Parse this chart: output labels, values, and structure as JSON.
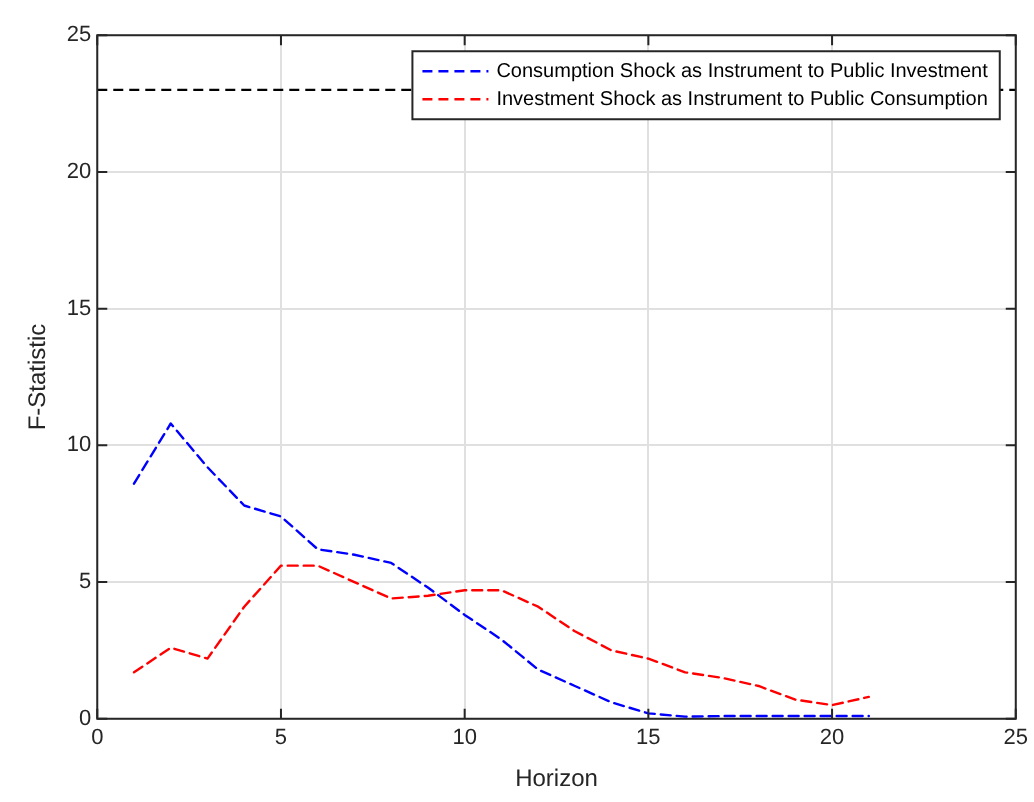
{
  "chart_data": {
    "type": "line",
    "xlabel": "Horizon",
    "ylabel": "F-Statistic",
    "x": [
      1,
      2,
      3,
      4,
      5,
      6,
      7,
      8,
      9,
      10,
      11,
      12,
      13,
      14,
      15,
      16,
      17,
      18,
      19,
      20,
      21
    ],
    "series": [
      {
        "name": "Consumption Shock as Instrument to Public Investment",
        "color": "#0000ff",
        "values": [
          8.6,
          10.8,
          9.2,
          7.8,
          7.4,
          6.2,
          6.0,
          5.7,
          4.8,
          3.8,
          2.9,
          1.8,
          1.2,
          0.6,
          0.2,
          0.08,
          0.1,
          0.1,
          0.1,
          0.1,
          0.1
        ]
      },
      {
        "name": "Investment Shock as Instrument to Public Consumption",
        "color": "#ff0000",
        "values": [
          1.7,
          2.6,
          2.2,
          4.1,
          5.6,
          5.6,
          5.0,
          4.4,
          4.5,
          4.7,
          4.7,
          4.1,
          3.2,
          2.5,
          2.2,
          1.7,
          1.5,
          1.2,
          0.7,
          0.5,
          0.8
        ]
      }
    ],
    "xlim": [
      0,
      25
    ],
    "xticks": [
      0,
      5,
      10,
      15,
      20,
      25
    ],
    "ylim": [
      0,
      25
    ],
    "yticks": [
      0,
      5,
      10,
      15,
      20,
      25
    ],
    "ref_lines": [
      {
        "axis": "y",
        "value": 23,
        "color": "#000000",
        "line_style": "dashed"
      }
    ],
    "grid": true,
    "legend": "top right",
    "marker": "none",
    "line_style": "dashed"
  }
}
